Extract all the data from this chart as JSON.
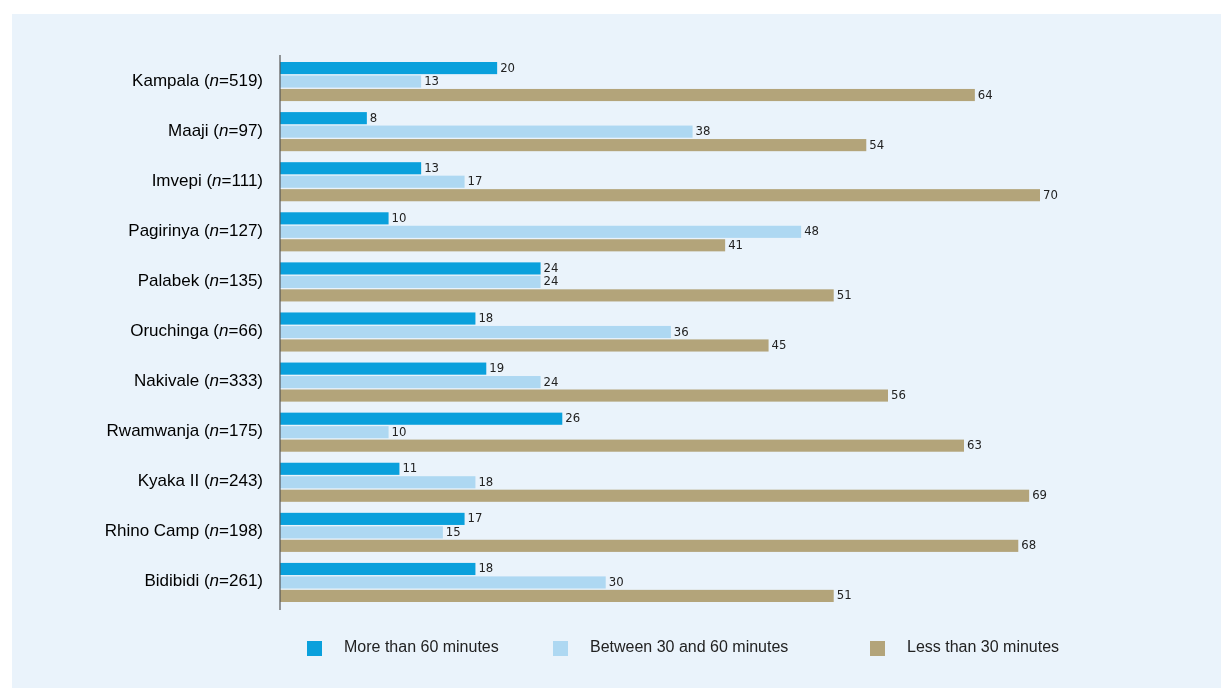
{
  "chart_data": {
    "type": "bar",
    "orientation": "horizontal",
    "categories": [
      "Kampala (n=519)",
      "Maaji (n=97)",
      "Imvepi (n=111)",
      "Pagirinya (n=127)",
      "Palabek (n=135)",
      "Oruchinga (n=66)",
      "Nakivale (n=333)",
      "Rwamwanja (n=175)",
      "Kyaka II (n=243)",
      "Rhino Camp (n=198)",
      "Bidibidi (n=261)"
    ],
    "series": [
      {
        "name": "More than 60 minutes",
        "color": "#0aa0dc",
        "values": [
          20,
          8,
          13,
          10,
          24,
          18,
          19,
          26,
          11,
          17,
          18
        ]
      },
      {
        "name": "Between 30 and 60 minutes",
        "color": "#aed8f2",
        "values": [
          13,
          38,
          17,
          48,
          24,
          36,
          24,
          10,
          18,
          15,
          30
        ]
      },
      {
        "name": "Less than 30 minutes",
        "color": "#b3a47a",
        "values": [
          64,
          54,
          70,
          41,
          51,
          45,
          56,
          63,
          69,
          68,
          51
        ]
      }
    ],
    "data_labels": true,
    "legend": "bottom",
    "grid": false
  }
}
